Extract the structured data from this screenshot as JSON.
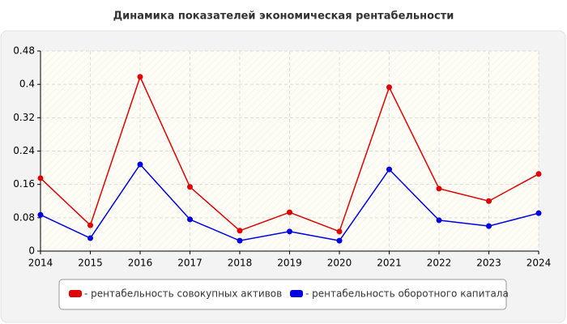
{
  "chart_data": {
    "type": "line",
    "title": "Динамика показателей экономическая рентабельности",
    "x": [
      2014,
      2015,
      2016,
      2017,
      2018,
      2019,
      2020,
      2021,
      2022,
      2023,
      2024
    ],
    "series": [
      {
        "name": "- рентабельность совокупных активов",
        "color": "#e00000",
        "values": [
          0.175,
          0.062,
          0.418,
          0.154,
          0.049,
          0.093,
          0.047,
          0.393,
          0.15,
          0.12,
          0.185
        ]
      },
      {
        "name": "- рентабельность оборотного капитала",
        "color": "#0000e0",
        "values": [
          0.087,
          0.031,
          0.208,
          0.076,
          0.025,
          0.047,
          0.025,
          0.196,
          0.074,
          0.06,
          0.091
        ]
      }
    ],
    "xlim": [
      2014,
      2024
    ],
    "xticks": [
      2014,
      2015,
      2016,
      2017,
      2018,
      2019,
      2020,
      2021,
      2022,
      2023,
      2024
    ],
    "ylim": [
      0,
      0.48
    ],
    "yticks": [
      0,
      0.08,
      0.16,
      0.24,
      0.32,
      0.4,
      0.48
    ],
    "grid": true,
    "legend": "bottom"
  }
}
